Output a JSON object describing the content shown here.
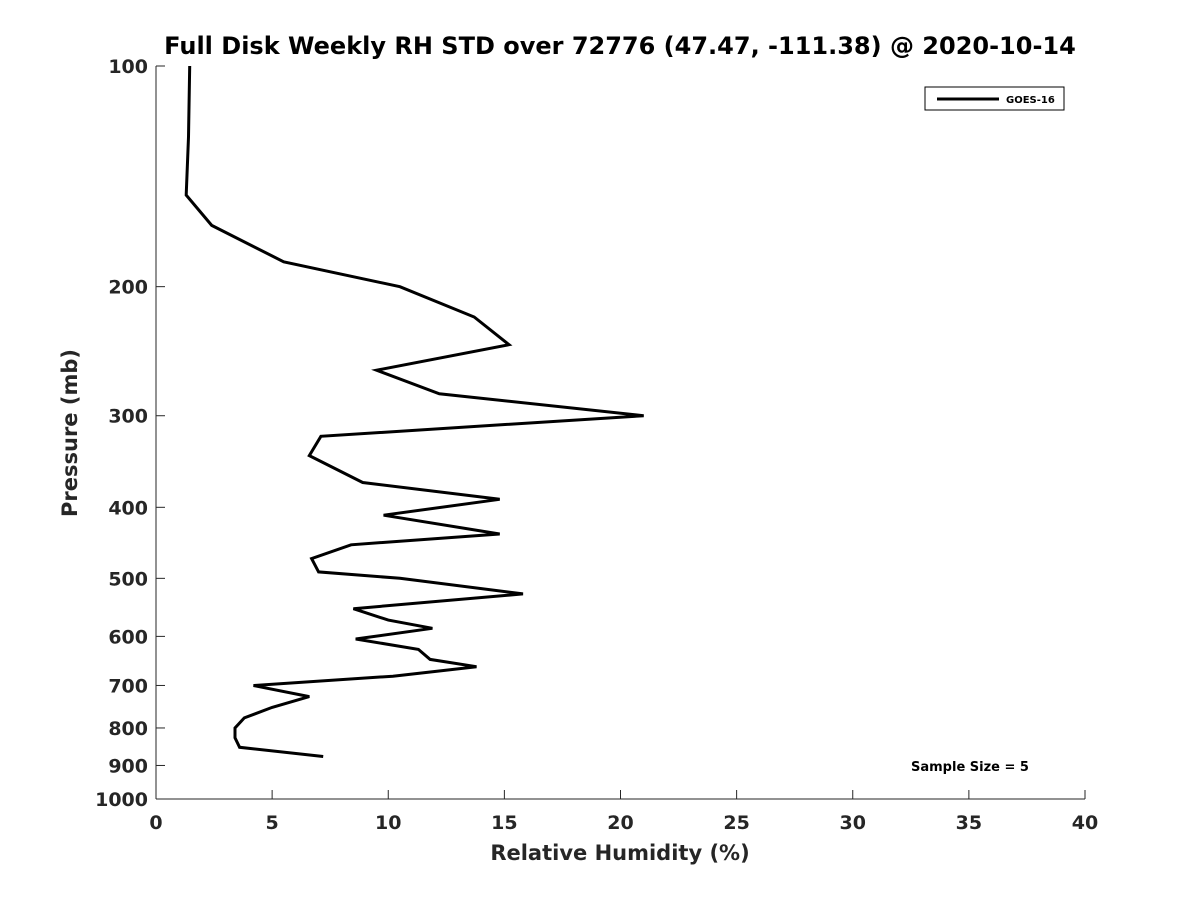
{
  "chart_data": {
    "type": "line",
    "title": "Full Disk Weekly RH STD over 72776 (47.47, -111.38) @ 2020-10-14",
    "xlabel": "Relative Humidity (%)",
    "ylabel": "Pressure (mb)",
    "xlim": [
      0,
      40
    ],
    "ylim": [
      100,
      1000
    ],
    "y_scale": "log",
    "y_reversed": true,
    "x_ticks": [
      "0",
      "5",
      "10",
      "15",
      "20",
      "25",
      "30",
      "35",
      "40"
    ],
    "y_ticks": [
      "100",
      "200",
      "300",
      "400",
      "500",
      "600",
      "700",
      "800",
      "900",
      "1000"
    ],
    "grid": false,
    "legend_position": "top-right",
    "series": [
      {
        "name": "GOES-16",
        "color": "#000000",
        "x": [
          1.45,
          1.4,
          1.3,
          2.4,
          5.5,
          10.5,
          13.7,
          15.2,
          9.5,
          12.2,
          21.0,
          7.1,
          6.6,
          8.9,
          14.8,
          9.8,
          14.8,
          8.4,
          6.7,
          7.0,
          10.5,
          15.8,
          8.5,
          10.0,
          11.9,
          8.6,
          11.3,
          11.8,
          13.8,
          10.2,
          4.2,
          6.6,
          5.0,
          3.8,
          3.4,
          3.4,
          3.6,
          7.2
        ],
        "y": [
          100,
          125,
          150,
          165,
          185,
          200,
          220,
          240,
          260,
          280,
          300,
          320,
          340,
          370,
          390,
          410,
          435,
          450,
          470,
          490,
          500,
          525,
          550,
          570,
          585,
          605,
          625,
          645,
          660,
          680,
          700,
          725,
          750,
          775,
          800,
          825,
          850,
          875
        ]
      }
    ],
    "annotation": "Sample Size = 5"
  }
}
